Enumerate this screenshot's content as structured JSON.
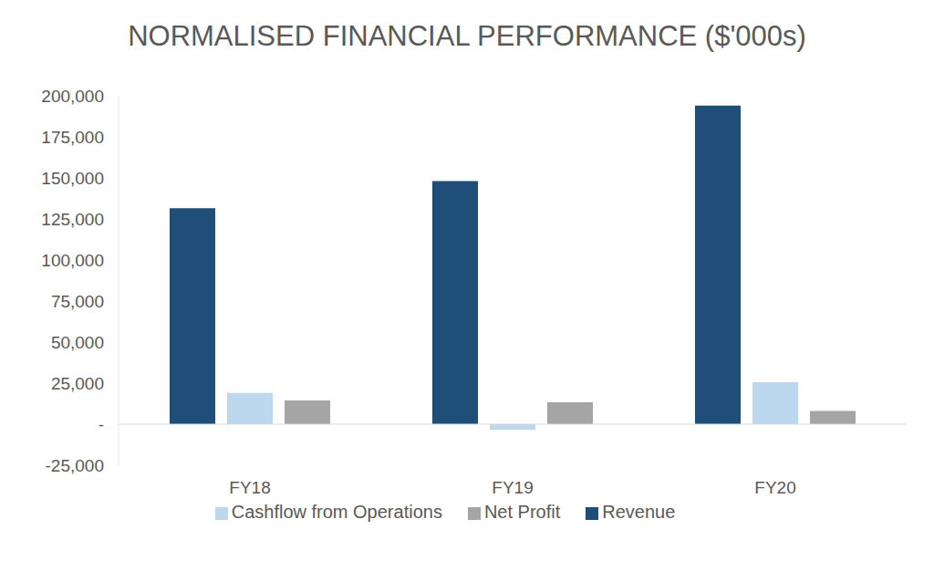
{
  "chart_data": {
    "type": "bar",
    "title": "NORMALISED FINANCIAL PERFORMANCE ($'000s)",
    "categories": [
      "FY18",
      "FY19",
      "FY20"
    ],
    "series": [
      {
        "name": "Revenue",
        "color": "#1f4e79",
        "values": [
          131500,
          148000,
          194000
        ]
      },
      {
        "name": "Cashflow from Operations",
        "color": "#bdd7ee",
        "values": [
          19000,
          -3500,
          25500
        ]
      },
      {
        "name": "Net Profit",
        "color": "#a5a5a5",
        "values": [
          14500,
          13300,
          8000
        ]
      }
    ],
    "ylim": [
      -25000,
      200000
    ],
    "yticks": [
      {
        "value": -25000,
        "label": "-25,000"
      },
      {
        "value": 0,
        "label": "-"
      },
      {
        "value": 25000,
        "label": "25,000"
      },
      {
        "value": 50000,
        "label": "50,000"
      },
      {
        "value": 75000,
        "label": "75,000"
      },
      {
        "value": 100000,
        "label": "100,000"
      },
      {
        "value": 125000,
        "label": "125,000"
      },
      {
        "value": 150000,
        "label": "150,000"
      },
      {
        "value": 175000,
        "label": "175,000"
      },
      {
        "value": 200000,
        "label": "200,000"
      }
    ],
    "grid": false,
    "legend": "bottom"
  }
}
